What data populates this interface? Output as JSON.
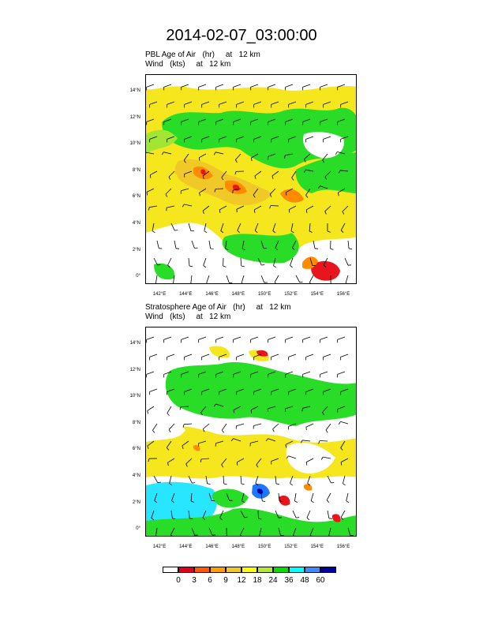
{
  "title": "2014-02-07_03:00:00",
  "panels": [
    {
      "line1": "PBL Age of Air   (hr)     at   12 km",
      "line2": "Wind   (kts)     at   12 km"
    },
    {
      "line1": "Stratosphere Age of Air   (hr)     at   12 km",
      "line2": "Wind   (kts)     at   12 km"
    }
  ],
  "map": {
    "lat_labels": [
      "14°N",
      "12°N",
      "10°N",
      "8°N",
      "6°N",
      "4°N",
      "2°N",
      "0°"
    ],
    "lon_labels": [
      "142°E",
      "144°E",
      "146°E",
      "148°E",
      "150°E",
      "152°E",
      "154°E",
      "156°E"
    ]
  },
  "colorbar": {
    "labels": [
      "0",
      "3",
      "6",
      "9",
      "12",
      "18",
      "24",
      "36",
      "48",
      "60"
    ],
    "colors": [
      "#ffffff",
      "#e0001c",
      "#ff5a00",
      "#ffa000",
      "#f0c828",
      "#ffff00",
      "#b4e832",
      "#00e000",
      "#00ffff",
      "#3c8cff",
      "#0000a0"
    ]
  },
  "palette": {
    "white": "#ffffff",
    "yellow": "#f5e61e",
    "gold": "#f0c828",
    "orange": "#ff8c00",
    "red": "#e8141e",
    "lime": "#a0e632",
    "green": "#28dc28",
    "cyan": "#28e6ff",
    "blue": "#1e78ff",
    "darkblue": "#0000a0"
  }
}
